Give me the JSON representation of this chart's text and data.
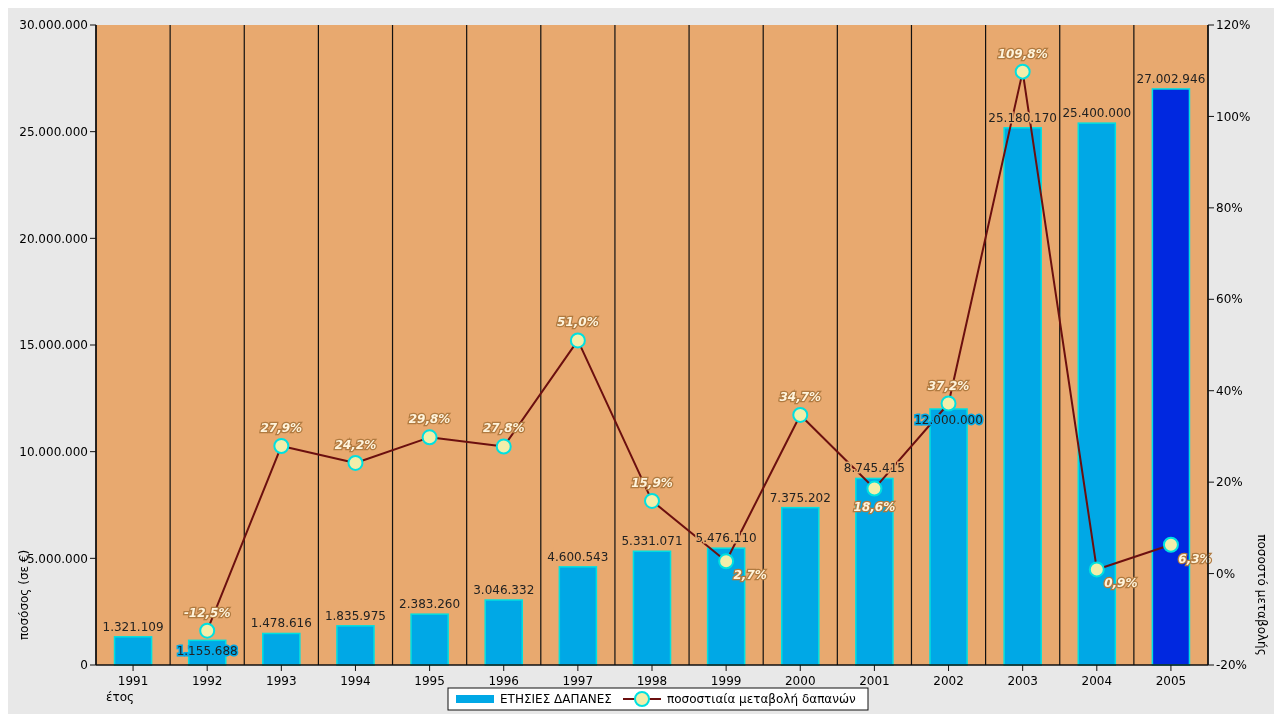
{
  "chart_data": {
    "type": "bar",
    "xlabel": "έτος",
    "ylabel": "ποσόσος (σε €)",
    "y2label": "ποσοστό μεταβολής",
    "categories": [
      "1991",
      "1992",
      "1993",
      "1994",
      "1995",
      "1996",
      "1997",
      "1998",
      "1999",
      "2000",
      "2001",
      "2002",
      "2003",
      "2004",
      "2005"
    ],
    "series": [
      {
        "name": "ΕΤΗΣΙΕΣ ΔΑΠΑΝΕΣ",
        "color": "#00a8e6",
        "colors": [
          "#00a8e6",
          "#00a8e6",
          "#00a8e6",
          "#00a8e6",
          "#00a8e6",
          "#00a8e6",
          "#00a8e6",
          "#00a8e6",
          "#00a8e6",
          "#00a8e6",
          "#00a8e6",
          "#00a8e6",
          "#00a8e6",
          "#00a8e6",
          "#0028e0"
        ],
        "values": [
          1321109,
          1155688,
          1478616,
          1835975,
          2383260,
          3046332,
          4600543,
          5331071,
          5476110,
          7375202,
          8745415,
          12000000,
          25180170,
          25400000,
          27002946
        ],
        "value_labels": [
          "1.321.109",
          "1.155.688",
          "1.478.616",
          "1.835.975",
          "2.383.260",
          "3.046.332",
          "4.600.543",
          "5.331.071",
          "5.476.110",
          "7.375.202",
          "8.745.415",
          "12.000.000",
          "25.180.170",
          "25.400.000",
          "27.002.946"
        ]
      },
      {
        "name": "ποσοστιαία μεταβολή δαπανών",
        "type": "line",
        "axis": "y2",
        "color": "#6b0f0f",
        "values": [
          null,
          -12.5,
          27.9,
          24.2,
          29.8,
          27.8,
          51.0,
          15.9,
          2.7,
          34.7,
          18.6,
          37.2,
          109.8,
          0.9,
          6.3
        ],
        "value_labels": [
          null,
          "-12,5%",
          "27,9%",
          "24,2%",
          "29,8%",
          "27,8%",
          "51,0%",
          "15,9%",
          "2,7%",
          "34,7%",
          "18,6%",
          "37,2%",
          "109,8%",
          "0,9%",
          "6,3%"
        ]
      }
    ],
    "ylim": [
      0,
      30000000
    ],
    "yticks": [
      {
        "value": 0,
        "label": "0"
      },
      {
        "value": 5000000,
        "label": "5.000.000"
      },
      {
        "value": 10000000,
        "label": "10.000.000"
      },
      {
        "value": 15000000,
        "label": "15.000.000"
      },
      {
        "value": 20000000,
        "label": "20.000.000"
      },
      {
        "value": 25000000,
        "label": "25.000.000"
      },
      {
        "value": 30000000,
        "label": "30.000.000"
      }
    ],
    "y2lim": [
      -20,
      120
    ],
    "y2ticks": [
      {
        "value": -20,
        "label": "-20%"
      },
      {
        "value": 0,
        "label": "0%"
      },
      {
        "value": 20,
        "label": "20%"
      },
      {
        "value": 40,
        "label": "40%"
      },
      {
        "value": 60,
        "label": "60%"
      },
      {
        "value": 80,
        "label": "80%"
      },
      {
        "value": 100,
        "label": "100%"
      },
      {
        "value": 120,
        "label": "120%"
      }
    ],
    "grid": "x",
    "legend": "bottom",
    "marker": "circle",
    "line_style": "solid"
  }
}
